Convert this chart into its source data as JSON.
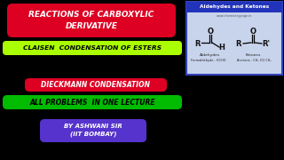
{
  "bg_color": "#000000",
  "title_text": "REACTIONS OF CARBOXYLIC\nDERIVATIVE",
  "title_bg": "#dd0022",
  "title_color": "#ffffff",
  "line2_text": "CLAISEN  CONDENSATION OF ESTERS",
  "line2_bg": "#aaff00",
  "line2_color": "#000000",
  "line3_text": "DIECKMANN CONDENSATION",
  "line3_bg": "#dd0022",
  "line3_color": "#ffffff",
  "line4_text": "ALL PROBLEMS  IN ONE LECTURE",
  "line4_bg": "#00bb00",
  "line4_color": "#000000",
  "line5_text": "BY ASHWANI SIR\n(IIT BOMBAY)",
  "line5_bg": "#5533cc",
  "line5_color": "#ffffff",
  "chem_box_bg": "#c8d4ec",
  "chem_box_border": "#3344bb",
  "chem_title": "Aldehydes and Ketones",
  "chem_title_bg": "#2233bb",
  "chem_title_color": "#ffffff",
  "chem_subtitle": "www.chemistrypage.in"
}
